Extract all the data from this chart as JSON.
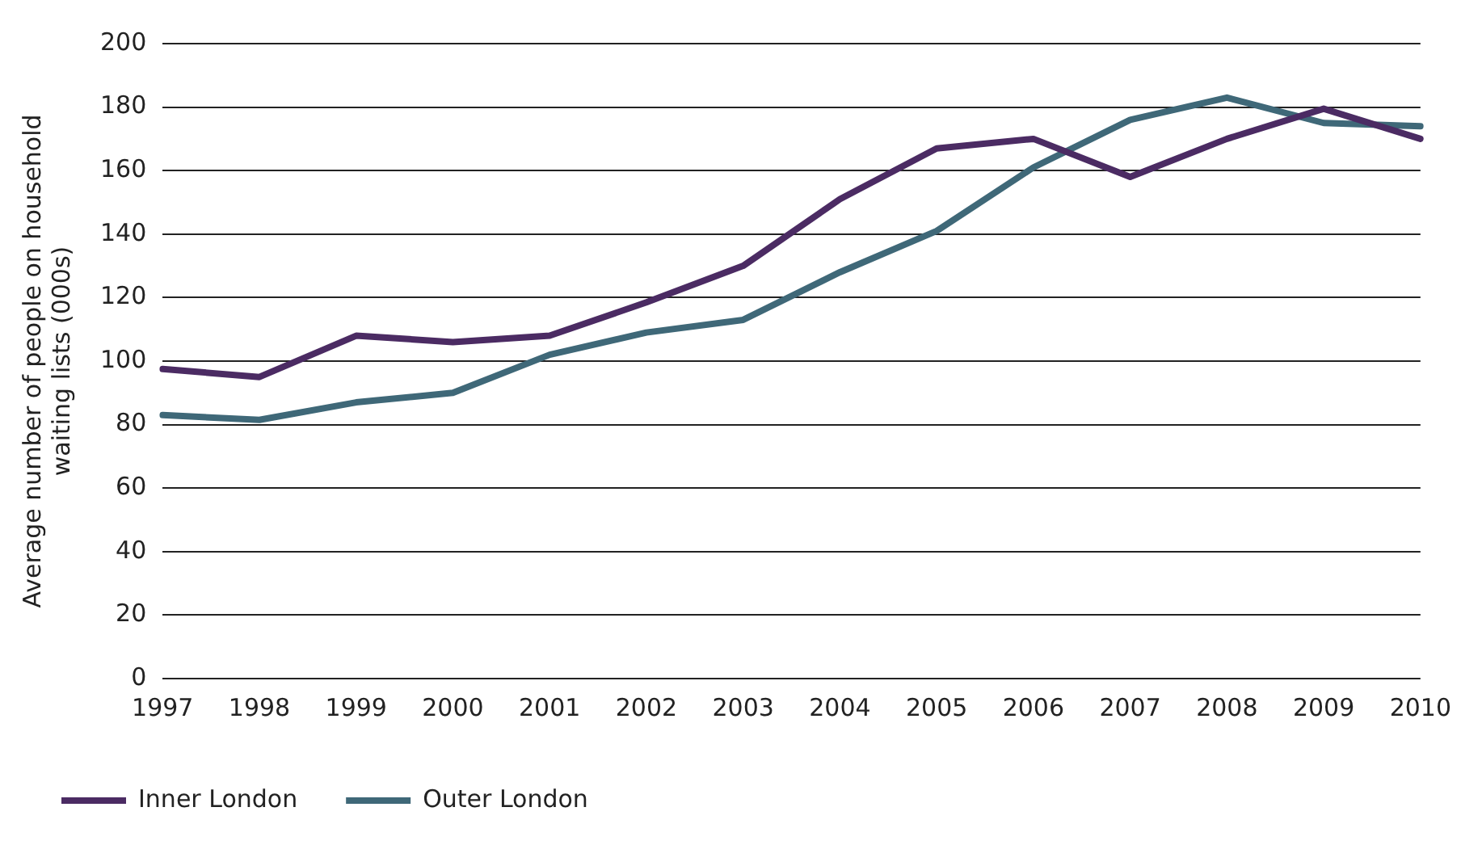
{
  "chart_data": {
    "type": "line",
    "ylabel": "Average number of people on household waiting lists (000s)",
    "categories": [
      "1997",
      "1998",
      "1999",
      "2000",
      "2001",
      "2002",
      "2003",
      "2004",
      "2005",
      "2006",
      "2007",
      "2008",
      "2009",
      "2010"
    ],
    "series": [
      {
        "name": "Inner London",
        "color": "#4b2b63",
        "values": [
          97.5,
          95,
          108,
          106,
          108,
          118.5,
          130,
          151,
          167,
          170,
          158,
          170,
          179.5,
          170
        ]
      },
      {
        "name": "Outer London",
        "color": "#3f6878",
        "values": [
          83,
          81.5,
          87,
          90,
          102,
          109,
          113,
          128,
          141,
          161,
          176,
          183,
          175,
          174
        ]
      }
    ],
    "ylim": [
      0,
      200
    ],
    "yticks": [
      0,
      20,
      40,
      60,
      80,
      100,
      120,
      140,
      160,
      180,
      200
    ],
    "grid": "y",
    "legend": "bottom",
    "marker": "none",
    "line_style": "solid"
  }
}
